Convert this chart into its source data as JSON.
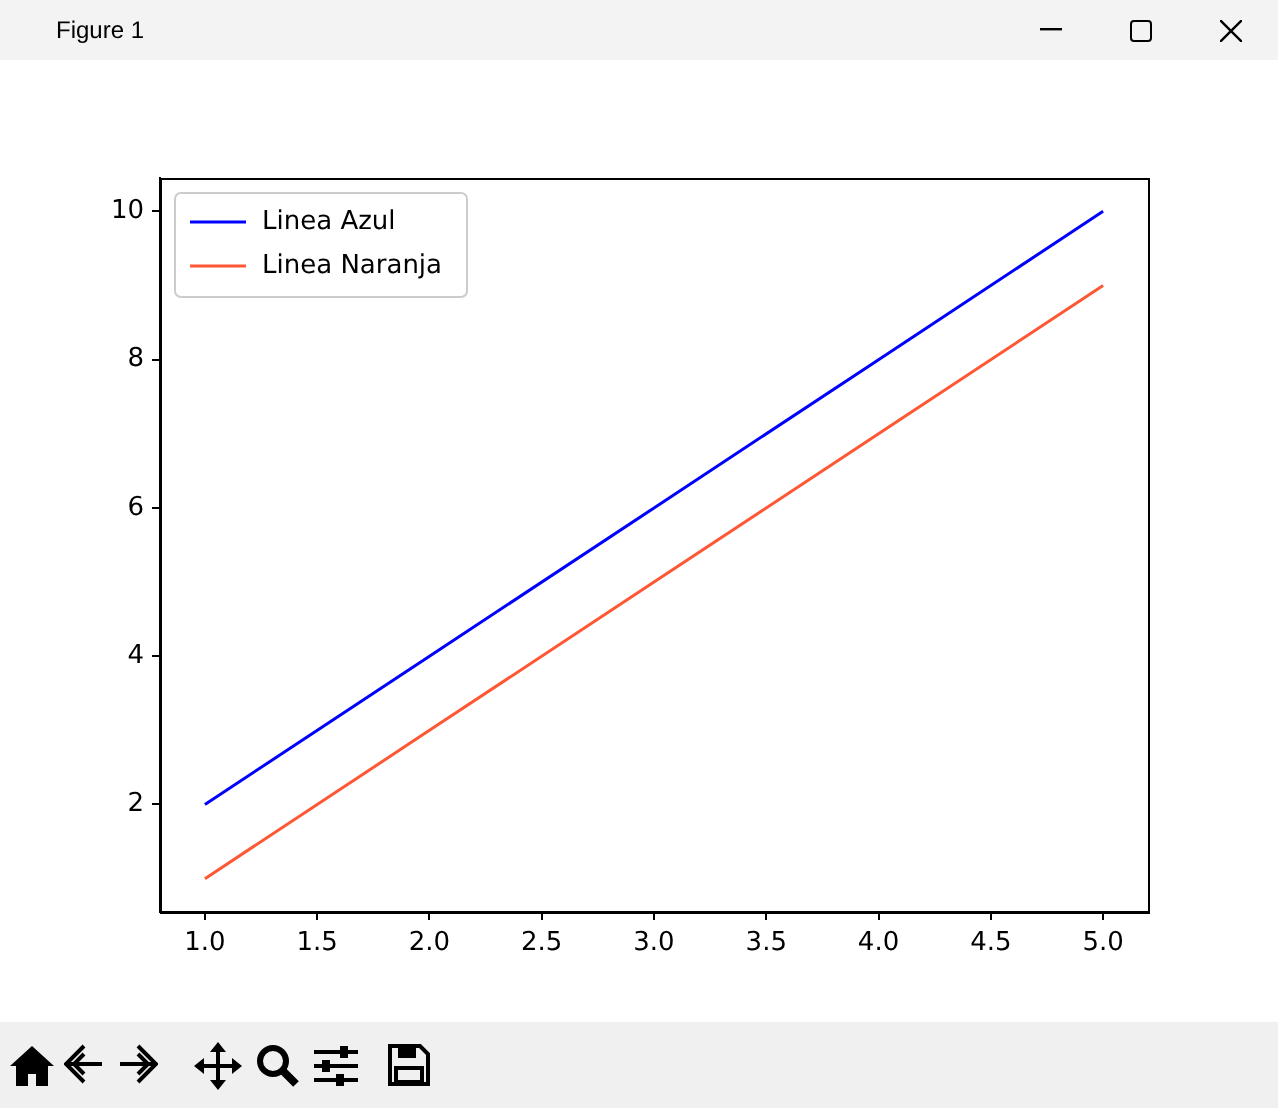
{
  "chart_data": {
    "type": "line",
    "annotations": [
      "Figure 1"
    ],
    "x": [
      1,
      2,
      3,
      4,
      5
    ],
    "series": [
      {
        "name": "Linea Azul",
        "color": "#0000ff",
        "values": [
          2,
          4,
          6,
          8,
          10
        ]
      },
      {
        "name": "Linea Naranja",
        "color": "#ff5733",
        "values": [
          1,
          3,
          5,
          7,
          9
        ]
      }
    ],
    "xlim": [
      0.8,
      5.2
    ],
    "xticks": [
      {
        "value": 1,
        "label": "1.0"
      },
      {
        "value": 1.5,
        "label": "1.5"
      },
      {
        "value": 2,
        "label": "2.0"
      },
      {
        "value": 2.5,
        "label": "2.5"
      },
      {
        "value": 3,
        "label": "3.0"
      },
      {
        "value": 3.5,
        "label": "3.5"
      },
      {
        "value": 4,
        "label": "4.0"
      },
      {
        "value": 4.5,
        "label": "4.5"
      },
      {
        "value": 5,
        "label": "5.0"
      }
    ],
    "ylim": [
      0.55,
      10.45
    ],
    "yticks": [
      2,
      4,
      6,
      8,
      10
    ],
    "grid": false,
    "legend": "top left",
    "marker": "none",
    "line_style": "solid"
  }
}
